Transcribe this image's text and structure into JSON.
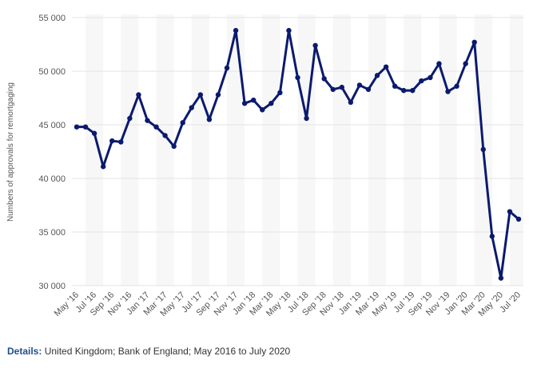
{
  "chart_data": {
    "type": "line",
    "y_label": "Numbers of approvals for remortgaging",
    "categories": [
      "May '16",
      null,
      "Jul '16",
      null,
      "Sep '16",
      null,
      "Nov '16",
      null,
      "Jan '17",
      null,
      "Mar '17",
      null,
      "May '17",
      null,
      "Jul '17",
      null,
      "Sep '17",
      null,
      "Nov '17",
      null,
      "Jan '18",
      null,
      "Mar '18",
      null,
      "May '18",
      null,
      "Jul '18",
      null,
      "Sep '18",
      null,
      "Nov '18",
      null,
      "Jan '19",
      null,
      "Mar '19",
      null,
      "May '19",
      null,
      "Jul '19",
      null,
      "Sep '19",
      null,
      "Nov '19",
      null,
      "Jan '20",
      null,
      "Mar '20",
      null,
      "May '20",
      null,
      "Jul '20"
    ],
    "values": [
      44800,
      44800,
      44200,
      41100,
      43500,
      43400,
      45600,
      47800,
      45400,
      44800,
      44000,
      43000,
      45200,
      46600,
      47800,
      45500,
      47800,
      50300,
      53800,
      47000,
      47300,
      46400,
      47000,
      48000,
      53800,
      49400,
      45600,
      52400,
      49300,
      48300,
      48500,
      47100,
      48700,
      48300,
      49600,
      50400,
      48600,
      48200,
      48200,
      49100,
      49400,
      50700,
      48100,
      48600,
      50700,
      52700,
      42700,
      34600,
      30700,
      36900,
      36200
    ],
    "color": "#0b1a6e",
    "ylim": [
      30000,
      55000
    ],
    "yticks": [
      {
        "value": 30000,
        "label": "30 000"
      },
      {
        "value": 35000,
        "label": "35 000"
      },
      {
        "value": 40000,
        "label": "40 000"
      },
      {
        "value": 45000,
        "label": "45 000"
      },
      {
        "value": 50000,
        "label": "50 000"
      },
      {
        "value": 55000,
        "label": "55 000"
      }
    ],
    "grid": true
  },
  "details": {
    "label": "Details:",
    "text": "United Kingdom; Bank of England; May 2016 to July 2020"
  }
}
